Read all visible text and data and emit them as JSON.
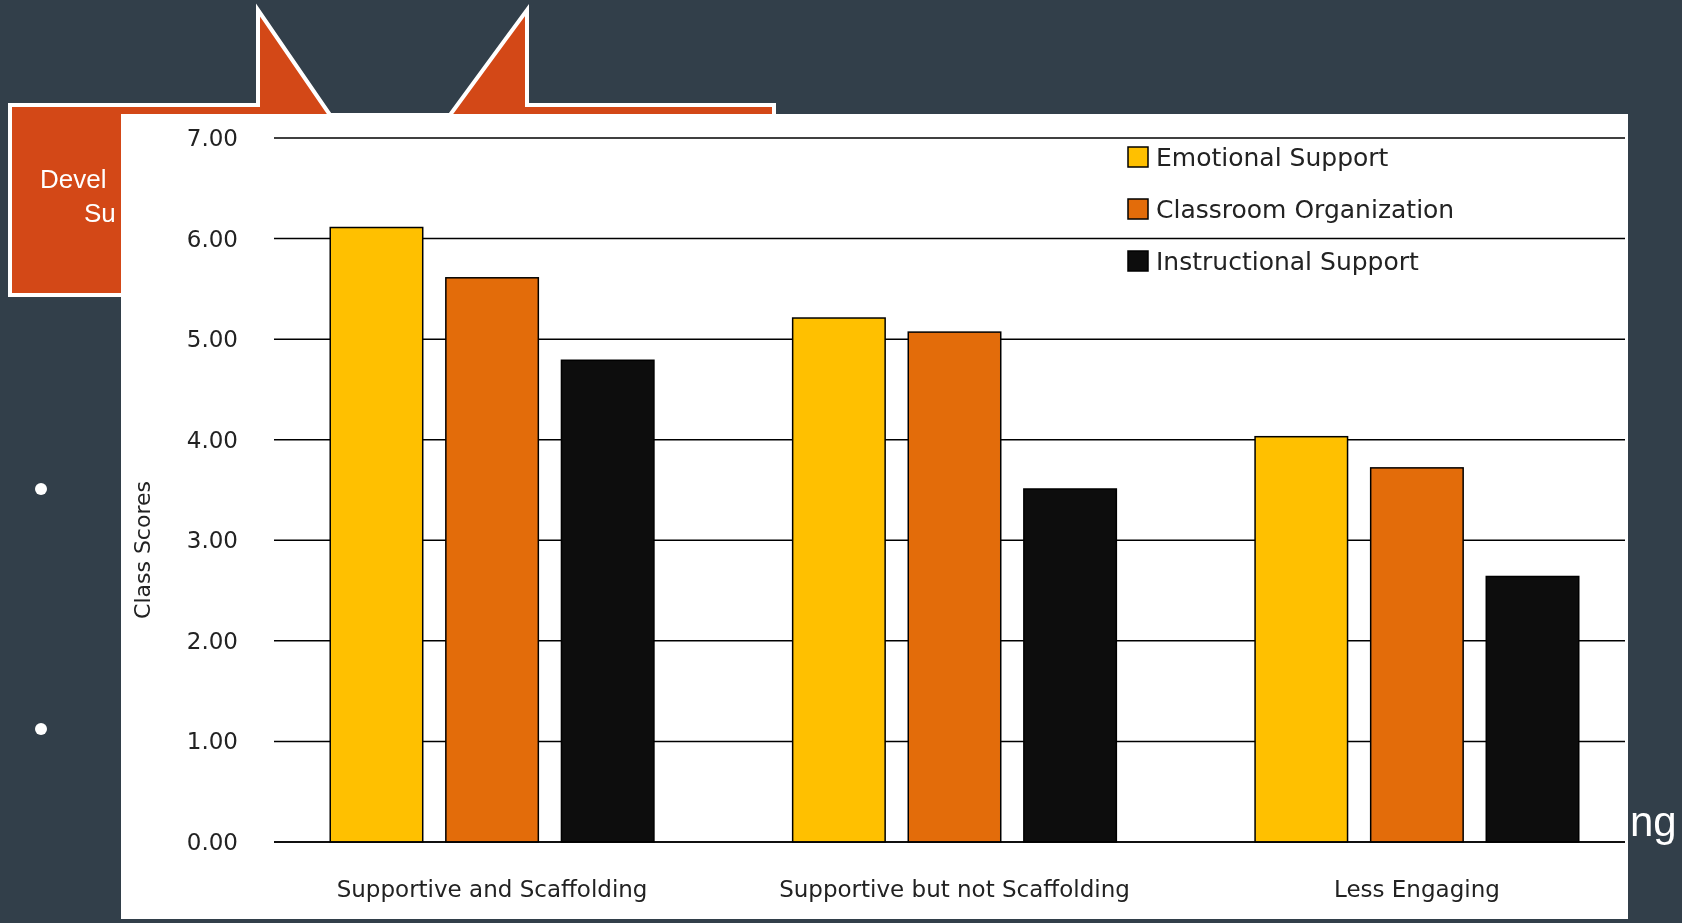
{
  "chart_data": {
    "type": "bar",
    "ylabel": "Class Scores",
    "categories": [
      "Supportive and Scaffolding",
      "Supportive but not Scaffolding",
      "Less Engaging"
    ],
    "series": [
      {
        "name": "Emotional Support",
        "color": "#ffc000",
        "values": [
          6.11,
          5.21,
          4.03
        ]
      },
      {
        "name": "Classroom Organization",
        "color": "#e36c0a",
        "values": [
          5.61,
          5.07,
          3.72
        ]
      },
      {
        "name": "Instructional Support",
        "color": "#0d0d0d",
        "values": [
          4.79,
          3.51,
          2.64
        ]
      }
    ],
    "ylim": [
      0,
      7
    ],
    "yticks": [
      {
        "value": 0,
        "label": "0.00"
      },
      {
        "value": 1,
        "label": "1.00"
      },
      {
        "value": 2,
        "label": "2.00"
      },
      {
        "value": 3,
        "label": "3.00"
      },
      {
        "value": 4,
        "label": "4.00"
      },
      {
        "value": 5,
        "label": "5.00"
      },
      {
        "value": 6,
        "label": "6.00"
      },
      {
        "value": 7,
        "label": "7.00"
      }
    ],
    "grid": "y",
    "legend": "top right",
    "annotations": [
      "Devel",
      "Su",
      "ng"
    ]
  }
}
